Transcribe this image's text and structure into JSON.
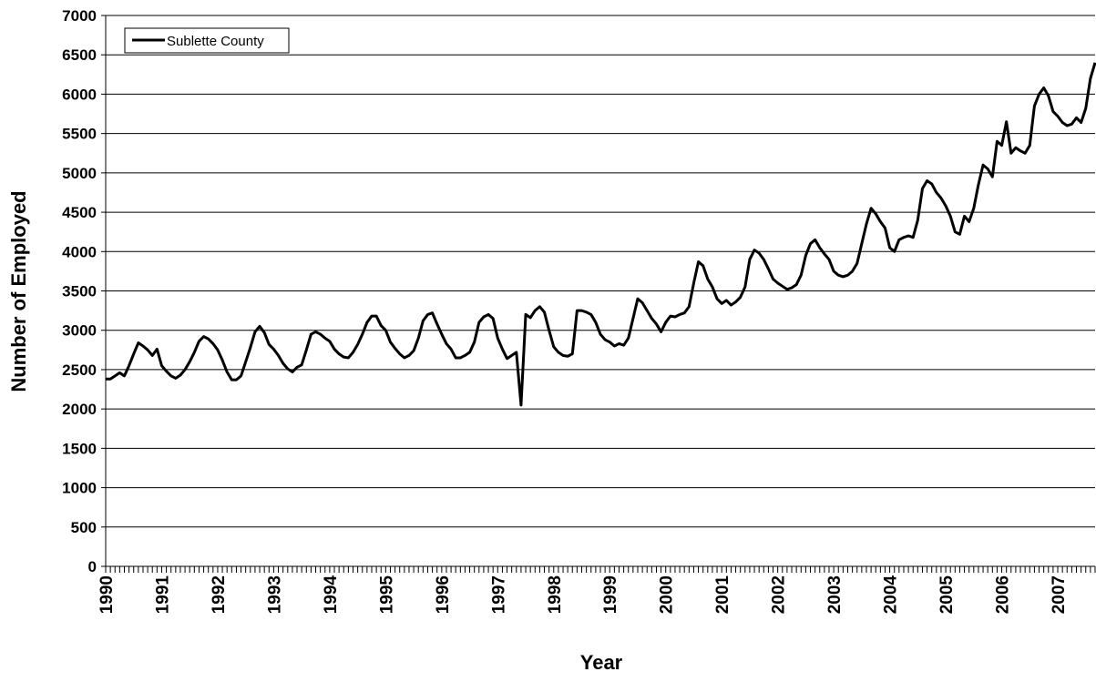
{
  "chart_data": {
    "type": "line",
    "x_label": "Year",
    "y_label": "Number of Employed",
    "categories": [
      "1990",
      null,
      null,
      null,
      null,
      null,
      null,
      null,
      null,
      null,
      null,
      null,
      "1991",
      null,
      null,
      null,
      null,
      null,
      null,
      null,
      null,
      null,
      null,
      null,
      "1992",
      null,
      null,
      null,
      null,
      null,
      null,
      null,
      null,
      null,
      null,
      null,
      "1993",
      null,
      null,
      null,
      null,
      null,
      null,
      null,
      null,
      null,
      null,
      null,
      "1994",
      null,
      null,
      null,
      null,
      null,
      null,
      null,
      null,
      null,
      null,
      null,
      "1995",
      null,
      null,
      null,
      null,
      null,
      null,
      null,
      null,
      null,
      null,
      null,
      "1996",
      null,
      null,
      null,
      null,
      null,
      null,
      null,
      null,
      null,
      null,
      null,
      "1997",
      null,
      null,
      null,
      null,
      null,
      null,
      null,
      null,
      null,
      null,
      null,
      "1998",
      null,
      null,
      null,
      null,
      null,
      null,
      null,
      null,
      null,
      null,
      null,
      "1999",
      null,
      null,
      null,
      null,
      null,
      null,
      null,
      null,
      null,
      null,
      null,
      "2000",
      null,
      null,
      null,
      null,
      null,
      null,
      null,
      null,
      null,
      null,
      null,
      "2001",
      null,
      null,
      null,
      null,
      null,
      null,
      null,
      null,
      null,
      null,
      null,
      "2002",
      null,
      null,
      null,
      null,
      null,
      null,
      null,
      null,
      null,
      null,
      null,
      "2003",
      null,
      null,
      null,
      null,
      null,
      null,
      null,
      null,
      null,
      null,
      null,
      "2004",
      null,
      null,
      null,
      null,
      null,
      null,
      null,
      null,
      null,
      null,
      null,
      "2005",
      null,
      null,
      null,
      null,
      null,
      null,
      null,
      null,
      null,
      null,
      null,
      "2006",
      null,
      null,
      null,
      null,
      null,
      null,
      null,
      null,
      null,
      null,
      null,
      "2007",
      null,
      null,
      null,
      null,
      null,
      null,
      null,
      null
    ],
    "series": [
      {
        "name": "Sublette County",
        "color": "#000000",
        "values": [
          2380,
          2380,
          2420,
          2460,
          2420,
          2550,
          2700,
          2840,
          2800,
          2750,
          2680,
          2760,
          2550,
          2480,
          2420,
          2390,
          2430,
          2500,
          2600,
          2720,
          2860,
          2920,
          2890,
          2830,
          2750,
          2620,
          2470,
          2370,
          2370,
          2420,
          2600,
          2780,
          2980,
          3050,
          2970,
          2820,
          2760,
          2680,
          2580,
          2510,
          2470,
          2530,
          2560,
          2750,
          2950,
          2980,
          2950,
          2900,
          2860,
          2760,
          2700,
          2660,
          2650,
          2720,
          2820,
          2950,
          3100,
          3180,
          3180,
          3060,
          3000,
          2850,
          2770,
          2700,
          2650,
          2680,
          2740,
          2900,
          3120,
          3200,
          3220,
          3080,
          2950,
          2830,
          2760,
          2650,
          2650,
          2680,
          2720,
          2850,
          3100,
          3170,
          3200,
          3150,
          2900,
          2760,
          2640,
          2680,
          2720,
          2050,
          3200,
          3160,
          3250,
          3300,
          3230,
          3000,
          2790,
          2720,
          2680,
          2670,
          2700,
          3250,
          3250,
          3230,
          3200,
          3100,
          2950,
          2880,
          2850,
          2800,
          2830,
          2810,
          2900,
          3150,
          3400,
          3350,
          3250,
          3150,
          3080,
          2980,
          3100,
          3180,
          3170,
          3200,
          3220,
          3300,
          3600,
          3870,
          3820,
          3650,
          3550,
          3400,
          3340,
          3380,
          3320,
          3360,
          3420,
          3550,
          3900,
          4020,
          3980,
          3900,
          3780,
          3650,
          3600,
          3560,
          3520,
          3540,
          3580,
          3700,
          3950,
          4100,
          4150,
          4050,
          3970,
          3900,
          3750,
          3700,
          3680,
          3700,
          3750,
          3850,
          4100,
          4350,
          4550,
          4480,
          4380,
          4300,
          4050,
          4000,
          4150,
          4180,
          4200,
          4180,
          4400,
          4800,
          4900,
          4860,
          4750,
          4680,
          4580,
          4450,
          4250,
          4220,
          4450,
          4380,
          4550,
          4850,
          5100,
          5050,
          4950,
          5400,
          5350,
          5650,
          5250,
          5320,
          5280,
          5250,
          5350,
          5850,
          6000,
          6080,
          5980,
          5780,
          5720,
          5640,
          5600,
          5620,
          5700,
          5640,
          5820,
          6200,
          6400
        ]
      }
    ],
    "ylim": [
      0,
      7000
    ],
    "yticks": [
      0,
      500,
      1000,
      1500,
      2000,
      2500,
      3000,
      3500,
      4000,
      4500,
      5000,
      5500,
      6000,
      6500,
      7000
    ],
    "grid": true,
    "legend": "upper-left"
  }
}
